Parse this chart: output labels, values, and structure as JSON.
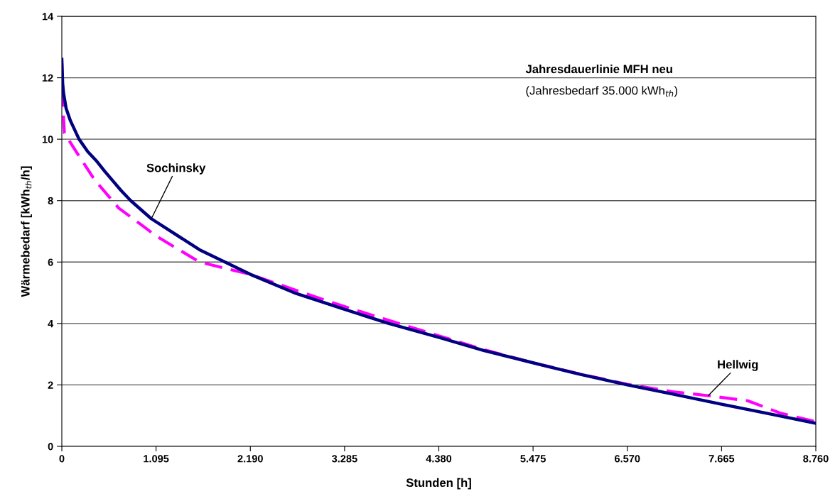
{
  "chart_data": {
    "type": "line",
    "title": "Jahresdauerlinie MFH neu",
    "subtitle": "(Jahresbedarf 35.000 kWh$_{th}$)",
    "xlabel": "Stunden [h]",
    "ylabel": "Wärmebedarf [kWh$_{th}$/h]",
    "series": [
      {
        "color": "#000080",
        "line_style": "solid",
        "x": [
          0,
          10,
          20,
          50,
          100,
          200,
          300,
          400,
          500,
          685,
          800,
          1040,
          1600,
          2190,
          2700,
          3285,
          3800,
          4380,
          4900,
          5475,
          6000,
          6570,
          7100,
          7665,
          8200,
          8760
        ],
        "values": [
          12.6,
          11.8,
          11.5,
          11.0,
          10.6,
          10.0,
          9.6,
          9.3,
          8.95,
          8.34,
          8.0,
          7.41,
          6.4,
          5.6,
          5.0,
          4.46,
          4.0,
          3.55,
          3.12,
          2.72,
          2.36,
          2.0,
          1.7,
          1.37,
          1.07,
          0.75
        ]
      },
      {
        "color": "#ff00ff",
        "line_style": "dashed",
        "x": [
          0,
          10,
          20,
          30,
          165,
          380,
          660,
          958,
          1095,
          1600,
          2190,
          2700,
          3285,
          3800,
          4380,
          4900,
          5475,
          6000,
          6570,
          7100,
          7537,
          7975,
          8340,
          8760
        ],
        "values": [
          12.5,
          11.5,
          10.7,
          10.2,
          9.6,
          8.68,
          7.76,
          7.14,
          6.85,
          6.0,
          5.6,
          5.1,
          4.55,
          4.1,
          3.6,
          3.15,
          2.72,
          2.37,
          2.02,
          1.78,
          1.64,
          1.48,
          1.09,
          0.8
        ]
      }
    ],
    "annotations": [
      {
        "text": "Sochinsky",
        "x": 1040,
        "y": 7.41
      },
      {
        "text": "Hellwig",
        "x": 7510,
        "y": 1.65
      }
    ],
    "xlim": [
      0,
      8760
    ],
    "xticks": [
      0,
      {
        "value": 1095,
        "label": "1.095"
      },
      {
        "value": 2190,
        "label": "2.190"
      },
      {
        "value": 3285,
        "label": "3.285"
      },
      {
        "value": 4380,
        "label": "4.380"
      },
      {
        "value": 5475,
        "label": "5.475"
      },
      {
        "value": 6570,
        "label": "6.570"
      },
      {
        "value": 7665,
        "label": "7.665"
      },
      {
        "value": 8760,
        "label": "8.760"
      }
    ],
    "ylim": [
      0,
      14
    ],
    "yticks": [
      0,
      2,
      4,
      6,
      8,
      10,
      12,
      14
    ],
    "grid": "y"
  }
}
